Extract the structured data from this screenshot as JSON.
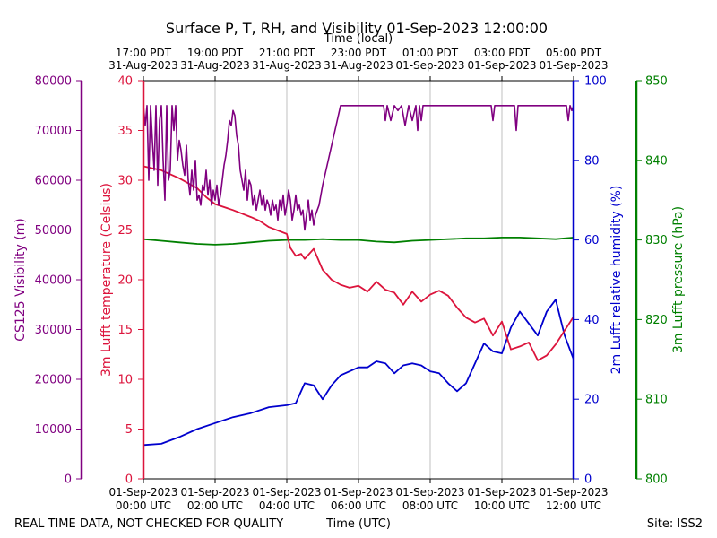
{
  "chart_data": {
    "type": "line",
    "title": "Surface P, T, RH, and Visibility 01-Sep-2023 12:00:00",
    "top_axis_label": "Time (local)",
    "xlabel": "Time (UTC)",
    "footer_left": "REAL TIME DATA, NOT CHECKED FOR QUALITY",
    "footer_right": "Site: ISS2",
    "x_range_hours": [
      0,
      12
    ],
    "x_ticks_utc": [
      {
        "hour": 0,
        "line1": "01-Sep-2023",
        "line2": "00:00 UTC"
      },
      {
        "hour": 2,
        "line1": "01-Sep-2023",
        "line2": "02:00 UTC"
      },
      {
        "hour": 4,
        "line1": "01-Sep-2023",
        "line2": "04:00 UTC"
      },
      {
        "hour": 6,
        "line1": "01-Sep-2023",
        "line2": "06:00 UTC"
      },
      {
        "hour": 8,
        "line1": "01-Sep-2023",
        "line2": "08:00 UTC"
      },
      {
        "hour": 10,
        "line1": "01-Sep-2023",
        "line2": "10:00 UTC"
      },
      {
        "hour": 12,
        "line1": "01-Sep-2023",
        "line2": "12:00 UTC"
      }
    ],
    "x_ticks_local": [
      {
        "hour": 0,
        "line1": "17:00 PDT",
        "line2": "31-Aug-2023"
      },
      {
        "hour": 2,
        "line1": "19:00 PDT",
        "line2": "31-Aug-2023"
      },
      {
        "hour": 4,
        "line1": "21:00 PDT",
        "line2": "31-Aug-2023"
      },
      {
        "hour": 6,
        "line1": "23:00 PDT",
        "line2": "31-Aug-2023"
      },
      {
        "hour": 8,
        "line1": "01:00 PDT",
        "line2": "01-Sep-2023"
      },
      {
        "hour": 10,
        "line1": "03:00 PDT",
        "line2": "01-Sep-2023"
      },
      {
        "hour": 12,
        "line1": "05:00 PDT",
        "line2": "01-Sep-2023"
      }
    ],
    "axes": {
      "visibility": {
        "label": "CS125 Visibility (m)",
        "color": "#800080",
        "ylim": [
          0,
          80000
        ],
        "ticks": [
          "0",
          "10000",
          "20000",
          "30000",
          "40000",
          "50000",
          "60000",
          "70000",
          "80000"
        ]
      },
      "temperature": {
        "label": "3m Lufft temperature (Celsius)",
        "color": "#dc143c",
        "ylim": [
          0,
          40
        ],
        "ticks": [
          "0",
          "5",
          "10",
          "15",
          "20",
          "25",
          "30",
          "35",
          "40"
        ]
      },
      "humidity": {
        "label": "2m Lufft relative humidity (%)",
        "color": "#0000cd",
        "ylim": [
          0,
          100
        ],
        "ticks": [
          "0",
          "20",
          "40",
          "60",
          "80",
          "100"
        ]
      },
      "pressure": {
        "label": "3m Lufft pressure (hPa)",
        "color": "#008000",
        "ylim": [
          800,
          850
        ],
        "ticks": [
          "800",
          "810",
          "820",
          "830",
          "840",
          "850"
        ]
      }
    },
    "series": [
      {
        "name": "visibility",
        "axis": "visibility",
        "x": [
          0,
          0.05,
          0.1,
          0.15,
          0.2,
          0.25,
          0.3,
          0.35,
          0.4,
          0.45,
          0.5,
          0.55,
          0.6,
          0.65,
          0.7,
          0.75,
          0.8,
          0.85,
          0.9,
          0.95,
          1.0,
          1.05,
          1.1,
          1.15,
          1.2,
          1.25,
          1.3,
          1.35,
          1.4,
          1.45,
          1.5,
          1.55,
          1.6,
          1.65,
          1.7,
          1.75,
          1.8,
          1.85,
          1.9,
          1.95,
          2.0,
          2.05,
          2.1,
          2.15,
          2.2,
          2.25,
          2.3,
          2.35,
          2.4,
          2.45,
          2.5,
          2.55,
          2.6,
          2.65,
          2.7,
          2.75,
          2.8,
          2.85,
          2.9,
          2.95,
          3.0,
          3.05,
          3.1,
          3.15,
          3.2,
          3.25,
          3.3,
          3.35,
          3.4,
          3.45,
          3.5,
          3.55,
          3.6,
          3.65,
          3.7,
          3.75,
          3.8,
          3.85,
          3.9,
          3.95,
          4.0,
          4.05,
          4.1,
          4.15,
          4.2,
          4.25,
          4.3,
          4.35,
          4.4,
          4.45,
          4.5,
          4.55,
          4.6,
          4.65,
          4.7,
          4.75,
          4.8,
          4.85,
          4.9,
          5.0,
          5.5,
          6.0,
          6.5,
          6.7,
          6.75,
          6.8,
          6.9,
          7.0,
          7.1,
          7.2,
          7.3,
          7.4,
          7.5,
          7.6,
          7.65,
          7.7,
          7.75,
          7.8,
          7.9,
          8.0,
          8.2,
          8.5,
          9.0,
          9.5,
          9.7,
          9.75,
          9.8,
          10.0,
          10.3,
          10.35,
          10.4,
          10.45,
          10.5,
          11.0,
          11.5,
          11.8,
          11.85,
          11.9,
          11.95,
          12.0
        ],
        "y": [
          75000,
          71000,
          75000,
          60000,
          75000,
          68000,
          62000,
          75000,
          59000,
          72000,
          75000,
          64000,
          56000,
          75000,
          60000,
          62000,
          75000,
          70000,
          75000,
          64000,
          68000,
          66000,
          63000,
          61000,
          67000,
          60000,
          57000,
          62000,
          58000,
          64000,
          56000,
          57000,
          55000,
          59000,
          58000,
          62000,
          57000,
          60000,
          55000,
          58000,
          56000,
          59000,
          55000,
          57000,
          60000,
          63000,
          65000,
          68000,
          72000,
          71000,
          74000,
          73000,
          69000,
          67000,
          62000,
          60000,
          58000,
          62000,
          56000,
          60000,
          59000,
          55000,
          57000,
          54000,
          56000,
          58000,
          55000,
          57000,
          54000,
          56000,
          55000,
          53000,
          56000,
          54000,
          55000,
          52000,
          56000,
          54000,
          57000,
          53000,
          55000,
          58000,
          56000,
          52000,
          54000,
          57000,
          54000,
          55000,
          53000,
          54000,
          50000,
          53000,
          56000,
          52000,
          54000,
          51000,
          53000,
          54000,
          55000,
          59000,
          75000,
          75000,
          75000,
          75000,
          72000,
          75000,
          72000,
          75000,
          74000,
          75000,
          71000,
          75000,
          72000,
          75000,
          70000,
          75000,
          72000,
          75000,
          75000,
          75000,
          75000,
          75000,
          75000,
          75000,
          75000,
          72000,
          75000,
          75000,
          75000,
          75000,
          70000,
          75000,
          75000,
          75000,
          75000,
          75000,
          72000,
          75000,
          74000,
          75000
        ]
      },
      {
        "name": "temperature",
        "axis": "temperature",
        "x": [
          0,
          0.5,
          1.0,
          1.5,
          1.75,
          2.0,
          2.5,
          3.0,
          3.25,
          3.5,
          4.0,
          4.1,
          4.25,
          4.4,
          4.5,
          4.75,
          5.0,
          5.25,
          5.5,
          5.75,
          6.0,
          6.25,
          6.5,
          6.75,
          7.0,
          7.25,
          7.5,
          7.75,
          8.0,
          8.25,
          8.5,
          8.75,
          9.0,
          9.25,
          9.5,
          9.75,
          10.0,
          10.25,
          10.5,
          10.75,
          11.0,
          11.25,
          11.5,
          11.75,
          12.0
        ],
        "y": [
          31.4,
          31.0,
          30.2,
          29.2,
          28.3,
          27.6,
          27.0,
          26.3,
          25.9,
          25.3,
          24.6,
          23.2,
          22.4,
          22.6,
          22.1,
          23.1,
          21.0,
          20.0,
          19.5,
          19.2,
          19.4,
          18.8,
          19.8,
          19.0,
          18.7,
          17.5,
          18.8,
          17.8,
          18.5,
          18.9,
          18.4,
          17.2,
          16.2,
          15.7,
          16.1,
          14.4,
          15.8,
          13.0,
          13.3,
          13.7,
          11.9,
          12.4,
          13.5,
          14.9,
          16.3
        ]
      },
      {
        "name": "humidity",
        "axis": "humidity",
        "x": [
          0,
          0.5,
          1.0,
          1.5,
          2.0,
          2.5,
          3.0,
          3.5,
          4.0,
          4.25,
          4.5,
          4.75,
          5.0,
          5.25,
          5.5,
          6.0,
          6.25,
          6.5,
          6.75,
          7.0,
          7.25,
          7.5,
          7.75,
          8.0,
          8.25,
          8.5,
          8.75,
          9.0,
          9.25,
          9.5,
          9.75,
          10.0,
          10.25,
          10.5,
          10.75,
          11.0,
          11.25,
          11.5,
          11.75,
          12.0
        ],
        "y": [
          8.5,
          8.8,
          10.5,
          12.5,
          14.0,
          15.5,
          16.5,
          18.0,
          18.5,
          19.0,
          24.0,
          23.5,
          20.0,
          23.5,
          26.0,
          28.0,
          28.0,
          29.5,
          29.0,
          26.5,
          28.5,
          29.0,
          28.5,
          27.0,
          26.5,
          24.0,
          22.0,
          24.0,
          29.0,
          34.0,
          32.0,
          31.5,
          38.0,
          42.0,
          39.0,
          36.0,
          42.0,
          45.0,
          36.0,
          30.0
        ]
      },
      {
        "name": "pressure",
        "axis": "pressure",
        "x": [
          0,
          0.5,
          1.0,
          1.5,
          2.0,
          2.5,
          3.0,
          3.5,
          4.0,
          4.5,
          5.0,
          5.5,
          6.0,
          6.5,
          7.0,
          7.5,
          8.0,
          8.5,
          9.0,
          9.5,
          10.0,
          10.5,
          11.0,
          11.5,
          12.0
        ],
        "y": [
          830.1,
          829.9,
          829.7,
          829.5,
          829.4,
          829.5,
          829.7,
          829.9,
          830.0,
          830.0,
          830.1,
          830.0,
          830.0,
          829.8,
          829.7,
          829.9,
          830.0,
          830.1,
          830.2,
          830.2,
          830.3,
          830.3,
          830.2,
          830.1,
          830.3
        ]
      }
    ]
  }
}
